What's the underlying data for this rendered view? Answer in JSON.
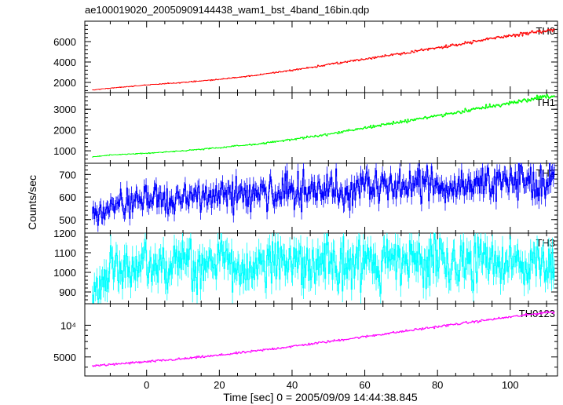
{
  "chart_data": {
    "type": "line",
    "title": "ae100019020_20050909144438_wam1_bst_4band_16bin.qdp",
    "xlabel": "Time [sec] 0 = 2005/09/09 14:44:38.845",
    "ylabel": "Counts/sec",
    "xlim": [
      -17,
      113
    ],
    "xticks": [
      0,
      20,
      40,
      60,
      80,
      100
    ],
    "grid": false,
    "panels": [
      {
        "name": "TH0",
        "color": "#ff0000",
        "ylim": [
          1000,
          8000
        ],
        "yscale": "linear",
        "yticks": [
          {
            "v": 2000,
            "t": "2000"
          },
          {
            "v": 4000,
            "t": "4000"
          },
          {
            "v": 6000,
            "t": "6000"
          }
        ],
        "x": [
          -15,
          -10,
          0,
          10,
          20,
          30,
          40,
          50,
          60,
          70,
          80,
          90,
          100,
          105,
          110,
          112
        ],
        "values": [
          1250,
          1450,
          1750,
          2000,
          2300,
          2700,
          3200,
          3750,
          4300,
          4850,
          5400,
          6000,
          6600,
          6850,
          7050,
          7100
        ],
        "noise": 0.012
      },
      {
        "name": "TH1",
        "color": "#00ff00",
        "ylim": [
          400,
          3800
        ],
        "yscale": "linear",
        "yticks": [
          {
            "v": 1000,
            "t": "1000"
          },
          {
            "v": 2000,
            "t": "2000"
          },
          {
            "v": 3000,
            "t": "3000"
          }
        ],
        "x": [
          -15,
          -10,
          0,
          10,
          20,
          30,
          40,
          50,
          60,
          70,
          80,
          90,
          100,
          105,
          110,
          112
        ],
        "values": [
          700,
          800,
          880,
          1000,
          1150,
          1320,
          1550,
          1800,
          2100,
          2400,
          2700,
          3000,
          3300,
          3450,
          3600,
          3600
        ],
        "noise": 0.015
      },
      {
        "name": "TH2",
        "color": "#0000ff",
        "ylim": [
          440,
          750
        ],
        "yscale": "linear",
        "yticks": [
          {
            "v": 500,
            "t": "500"
          },
          {
            "v": 600,
            "t": "600"
          },
          {
            "v": 700,
            "t": "700"
          }
        ],
        "x": [
          -15,
          -10,
          0,
          10,
          20,
          30,
          40,
          50,
          60,
          70,
          80,
          90,
          100,
          105,
          110,
          112
        ],
        "values": [
          520,
          560,
          585,
          595,
          605,
          615,
          625,
          635,
          640,
          650,
          655,
          660,
          665,
          665,
          670,
          670
        ],
        "noise": 0.06
      },
      {
        "name": "TH3",
        "color": "#00ffff",
        "ylim": [
          840,
          1200
        ],
        "yscale": "linear",
        "yticks": [
          {
            "v": 900,
            "t": "900"
          },
          {
            "v": 1000,
            "t": "1000"
          },
          {
            "v": 1100,
            "t": "1100"
          },
          {
            "v": 1200,
            "t": "1200"
          }
        ],
        "x": [
          -15,
          -10,
          0,
          10,
          20,
          30,
          40,
          50,
          60,
          70,
          80,
          90,
          100,
          105,
          110,
          112
        ],
        "values": [
          890,
          1040,
          1040,
          1040,
          1045,
          1045,
          1045,
          1050,
          1050,
          1050,
          1050,
          1050,
          1050,
          1050,
          1050,
          1050
        ],
        "noise": 0.06
      },
      {
        "name": "TH0123",
        "color": "#ff00ff",
        "ylim": [
          3300,
          16000
        ],
        "yscale": "log",
        "yticks": [
          {
            "v": 5000,
            "t": "5000"
          },
          {
            "v": 10000,
            "t": "10⁴"
          }
        ],
        "minor_yticks": [
          4000,
          6000,
          7000,
          8000,
          9000
        ],
        "x": [
          -15,
          -10,
          0,
          10,
          20,
          30,
          40,
          50,
          60,
          70,
          80,
          90,
          100,
          105,
          110,
          112
        ],
        "values": [
          4100,
          4250,
          4500,
          4800,
          5200,
          5700,
          6300,
          7000,
          7800,
          8700,
          9700,
          10800,
          12000,
          12600,
          13300,
          13300
        ],
        "noise": 0.012
      }
    ]
  }
}
